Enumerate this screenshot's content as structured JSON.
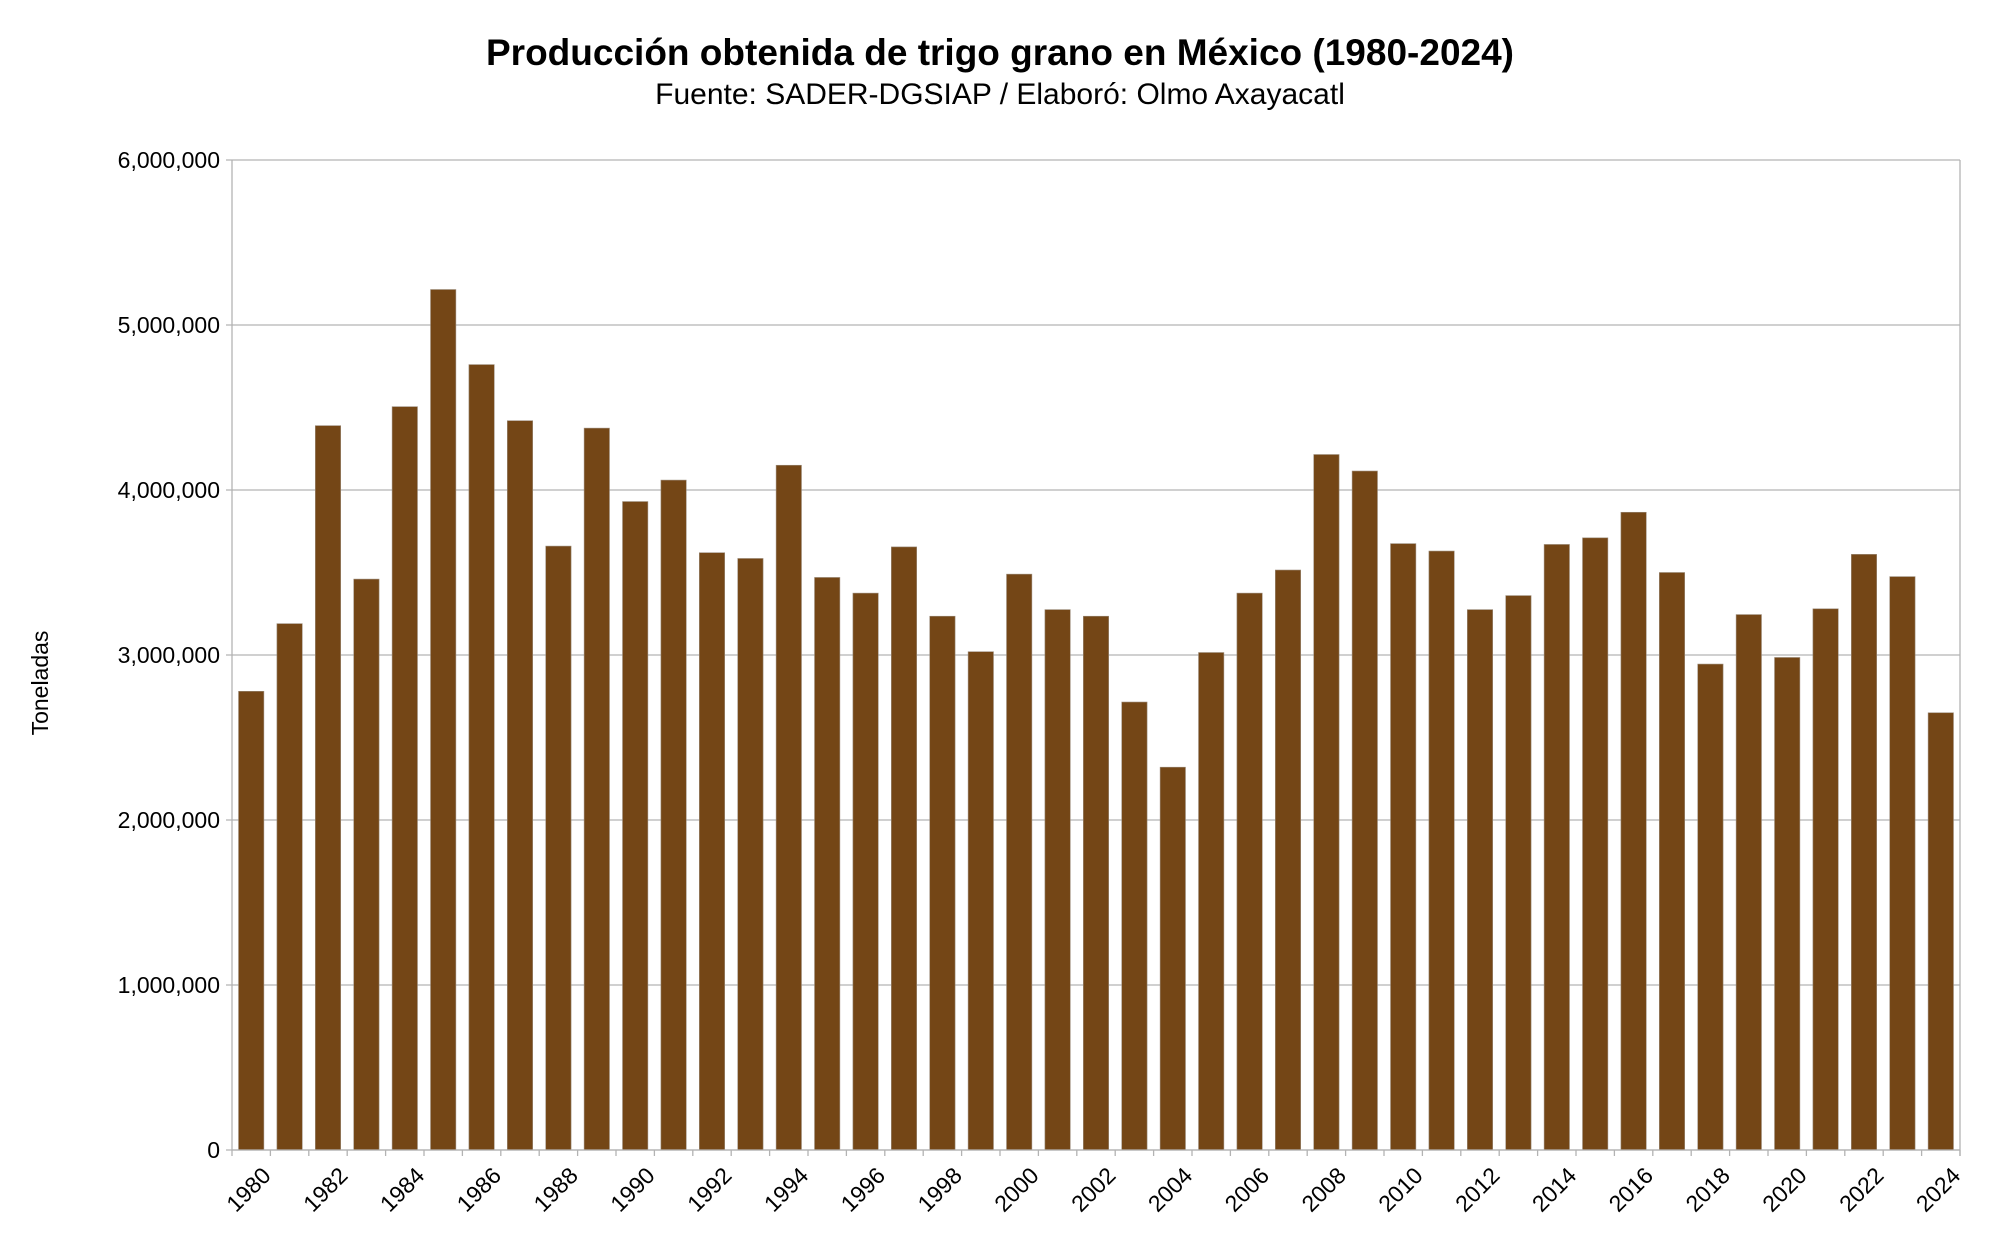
{
  "chart_data": {
    "type": "bar",
    "title": "Producción obtenida de trigo grano en México (1980-2024)",
    "subtitle": "Fuente: SADER-DGSIAP / Elaboró: Olmo Axayacatl",
    "xlabel": "",
    "ylabel": "Toneladas",
    "ylim": [
      0,
      6000000
    ],
    "yticks": [
      "0",
      "1,000,000",
      "2,000,000",
      "3,000,000",
      "4,000,000",
      "5,000,000",
      "6,000,000"
    ],
    "grid": true,
    "bar_color": "#744616",
    "categories": [
      "1980",
      "1981",
      "1982",
      "1983",
      "1984",
      "1985",
      "1986",
      "1987",
      "1988",
      "1989",
      "1990",
      "1991",
      "1992",
      "1993",
      "1994",
      "1995",
      "1996",
      "1997",
      "1998",
      "1999",
      "2000",
      "2001",
      "2002",
      "2003",
      "2004",
      "2005",
      "2006",
      "2007",
      "2008",
      "2009",
      "2010",
      "2011",
      "2012",
      "2013",
      "2014",
      "2015",
      "2016",
      "2017",
      "2018",
      "2019",
      "2020",
      "2021",
      "2022",
      "2023",
      "2024"
    ],
    "xtick_labels": [
      "1980",
      "1982",
      "1984",
      "1986",
      "1988",
      "1990",
      "1992",
      "1994",
      "1996",
      "1998",
      "2000",
      "2002",
      "2004",
      "2006",
      "2008",
      "2010",
      "2012",
      "2014",
      "2016",
      "2018",
      "2020",
      "2022",
      "2024"
    ],
    "values": [
      2780000,
      3190000,
      4390000,
      3460000,
      4505000,
      5215000,
      4760000,
      4420000,
      3660000,
      4375000,
      3930000,
      4060000,
      3620000,
      3585000,
      4150000,
      3470000,
      3375000,
      3655000,
      3235000,
      3020000,
      3490000,
      3275000,
      3235000,
      2715000,
      2320000,
      3015000,
      3375000,
      3515000,
      4215000,
      4115000,
      3675000,
      3630000,
      3275000,
      3360000,
      3670000,
      3710000,
      3865000,
      3500000,
      2945000,
      3245000,
      2985000,
      3280000,
      3610000,
      3475000,
      2650000
    ]
  }
}
